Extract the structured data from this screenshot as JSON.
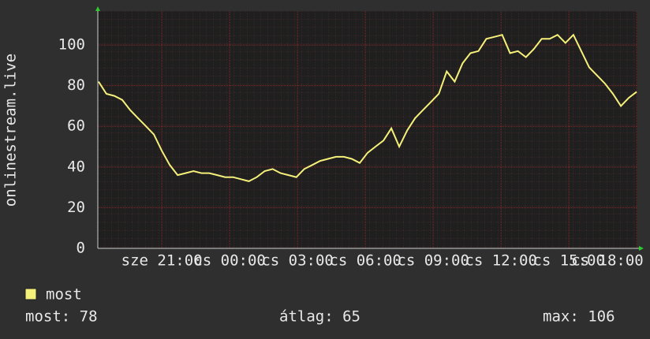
{
  "chart_data": {
    "type": "line",
    "y_label": "onlinestream.live",
    "x": [
      18.2,
      18.55,
      18.9,
      19.25,
      19.6,
      19.95,
      20.3,
      20.65,
      21.0,
      21.35,
      21.7,
      22.05,
      22.4,
      22.75,
      23.1,
      23.45,
      23.8,
      24.15,
      24.5,
      24.85,
      25.2,
      25.55,
      25.9,
      26.25,
      26.6,
      26.95,
      27.3,
      27.65,
      28.0,
      28.35,
      28.7,
      29.05,
      29.4,
      29.75,
      30.1,
      30.45,
      30.8,
      31.15,
      31.5,
      31.85,
      32.2,
      32.55,
      32.9,
      33.25,
      33.6,
      33.95,
      34.3,
      34.65,
      35.0,
      35.35,
      35.7,
      36.05,
      36.4,
      36.75,
      37.1,
      37.45,
      37.8,
      38.15,
      38.5,
      38.85,
      39.2,
      39.55,
      39.9,
      40.25,
      40.6,
      40.95,
      41.3,
      41.65,
      42.0
    ],
    "series": [
      {
        "name": "most",
        "color": "#f5f07a",
        "values": [
          82,
          76,
          75,
          73,
          68,
          64,
          60,
          56,
          48,
          41,
          36,
          37,
          38,
          37,
          37,
          36,
          35,
          35,
          34,
          33,
          35,
          38,
          39,
          37,
          36,
          35,
          39,
          41,
          43,
          44,
          45,
          45,
          44,
          42,
          47,
          50,
          53,
          59,
          50,
          58,
          64,
          68,
          72,
          76,
          87,
          82,
          91,
          96,
          97,
          103,
          104,
          105,
          96,
          97,
          94,
          98,
          103,
          103,
          105,
          101,
          105,
          97,
          89,
          85,
          81,
          76,
          70,
          74,
          77
        ]
      }
    ],
    "xlim": [
      18.17,
      42.03
    ],
    "ylim": [
      0,
      116.7
    ],
    "yticks": [
      0,
      20,
      40,
      60,
      80,
      100
    ],
    "xticks": [
      {
        "value": 21,
        "label": "sze 21:00"
      },
      {
        "value": 24,
        "label": "cs 00:00"
      },
      {
        "value": 27,
        "label": "cs 03:00"
      },
      {
        "value": 30,
        "label": "cs 06:00"
      },
      {
        "value": 33,
        "label": "cs 09:00"
      },
      {
        "value": 36,
        "label": "cs 12:00"
      },
      {
        "value": 39,
        "label": "cs 15:00"
      },
      {
        "value": 42,
        "label": "cs 18:00"
      }
    ],
    "grid": true,
    "stats": [
      "most: 78",
      "átlag: 65",
      "max: 106"
    ]
  }
}
